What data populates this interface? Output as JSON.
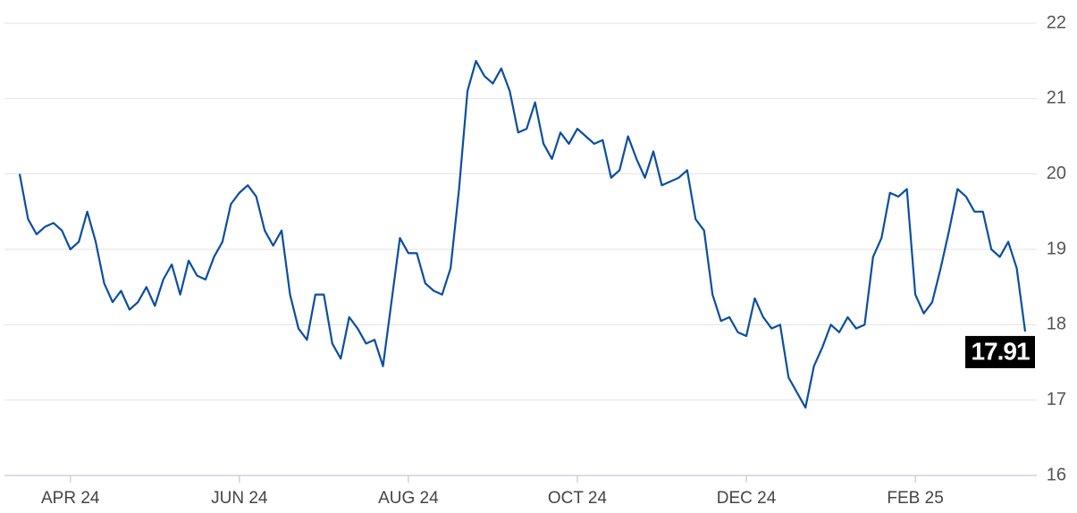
{
  "chart_data": {
    "type": "line",
    "categories": [
      null,
      null,
      null,
      null,
      null,
      null,
      "APR 24",
      null,
      null,
      null,
      null,
      null,
      null,
      null,
      null,
      null,
      null,
      null,
      null,
      null,
      null,
      null,
      null,
      null,
      null,
      null,
      "JUN 24",
      null,
      null,
      null,
      null,
      null,
      null,
      null,
      null,
      null,
      null,
      null,
      null,
      null,
      null,
      null,
      null,
      null,
      null,
      null,
      "AUG 24",
      null,
      null,
      null,
      null,
      null,
      null,
      null,
      null,
      null,
      null,
      null,
      null,
      null,
      null,
      null,
      null,
      null,
      null,
      null,
      "OCT 24",
      null,
      null,
      null,
      null,
      null,
      null,
      null,
      null,
      null,
      null,
      null,
      null,
      null,
      null,
      null,
      null,
      null,
      null,
      null,
      "DEC 24",
      null,
      null,
      null,
      null,
      null,
      null,
      null,
      null,
      null,
      null,
      null,
      null,
      null,
      null,
      null,
      null,
      null,
      null,
      null,
      "FEB 25",
      null,
      null,
      null,
      null,
      null,
      null,
      null,
      null,
      null,
      null,
      null,
      null,
      null
    ],
    "values": [
      20.0,
      19.4,
      19.2,
      19.3,
      19.35,
      19.25,
      19.0,
      19.1,
      19.5,
      19.1,
      18.55,
      18.3,
      18.45,
      18.2,
      18.3,
      18.5,
      18.25,
      18.6,
      18.8,
      18.4,
      18.85,
      18.65,
      18.6,
      18.9,
      19.1,
      19.6,
      19.75,
      19.85,
      19.7,
      19.25,
      19.05,
      19.25,
      18.4,
      17.95,
      17.8,
      18.4,
      18.4,
      17.75,
      17.55,
      18.1,
      17.95,
      17.75,
      17.8,
      17.45,
      18.3,
      19.15,
      18.95,
      18.95,
      18.55,
      18.45,
      18.4,
      18.75,
      19.8,
      21.1,
      21.5,
      21.3,
      21.2,
      21.4,
      21.1,
      20.55,
      20.6,
      20.95,
      20.4,
      20.2,
      20.55,
      20.4,
      20.6,
      20.5,
      20.4,
      20.45,
      19.95,
      20.05,
      20.5,
      20.2,
      19.95,
      20.3,
      19.85,
      19.9,
      19.95,
      20.05,
      19.4,
      19.25,
      18.4,
      18.05,
      18.1,
      17.9,
      17.85,
      18.35,
      18.1,
      17.95,
      18.0,
      17.3,
      17.1,
      16.9,
      17.45,
      17.7,
      18.0,
      17.9,
      18.1,
      17.95,
      18.0,
      18.9,
      19.15,
      19.75,
      19.7,
      19.8,
      18.4,
      18.15,
      18.3,
      18.75,
      19.25,
      19.8,
      19.7,
      19.5,
      19.5,
      19.0,
      18.9,
      19.1,
      18.75,
      17.91
    ],
    "color": "#0b4ea2",
    "ylim": [
      16,
      22
    ],
    "yticks": [
      16,
      17,
      18,
      19,
      20,
      21,
      22
    ],
    "grid": true
  }
}
